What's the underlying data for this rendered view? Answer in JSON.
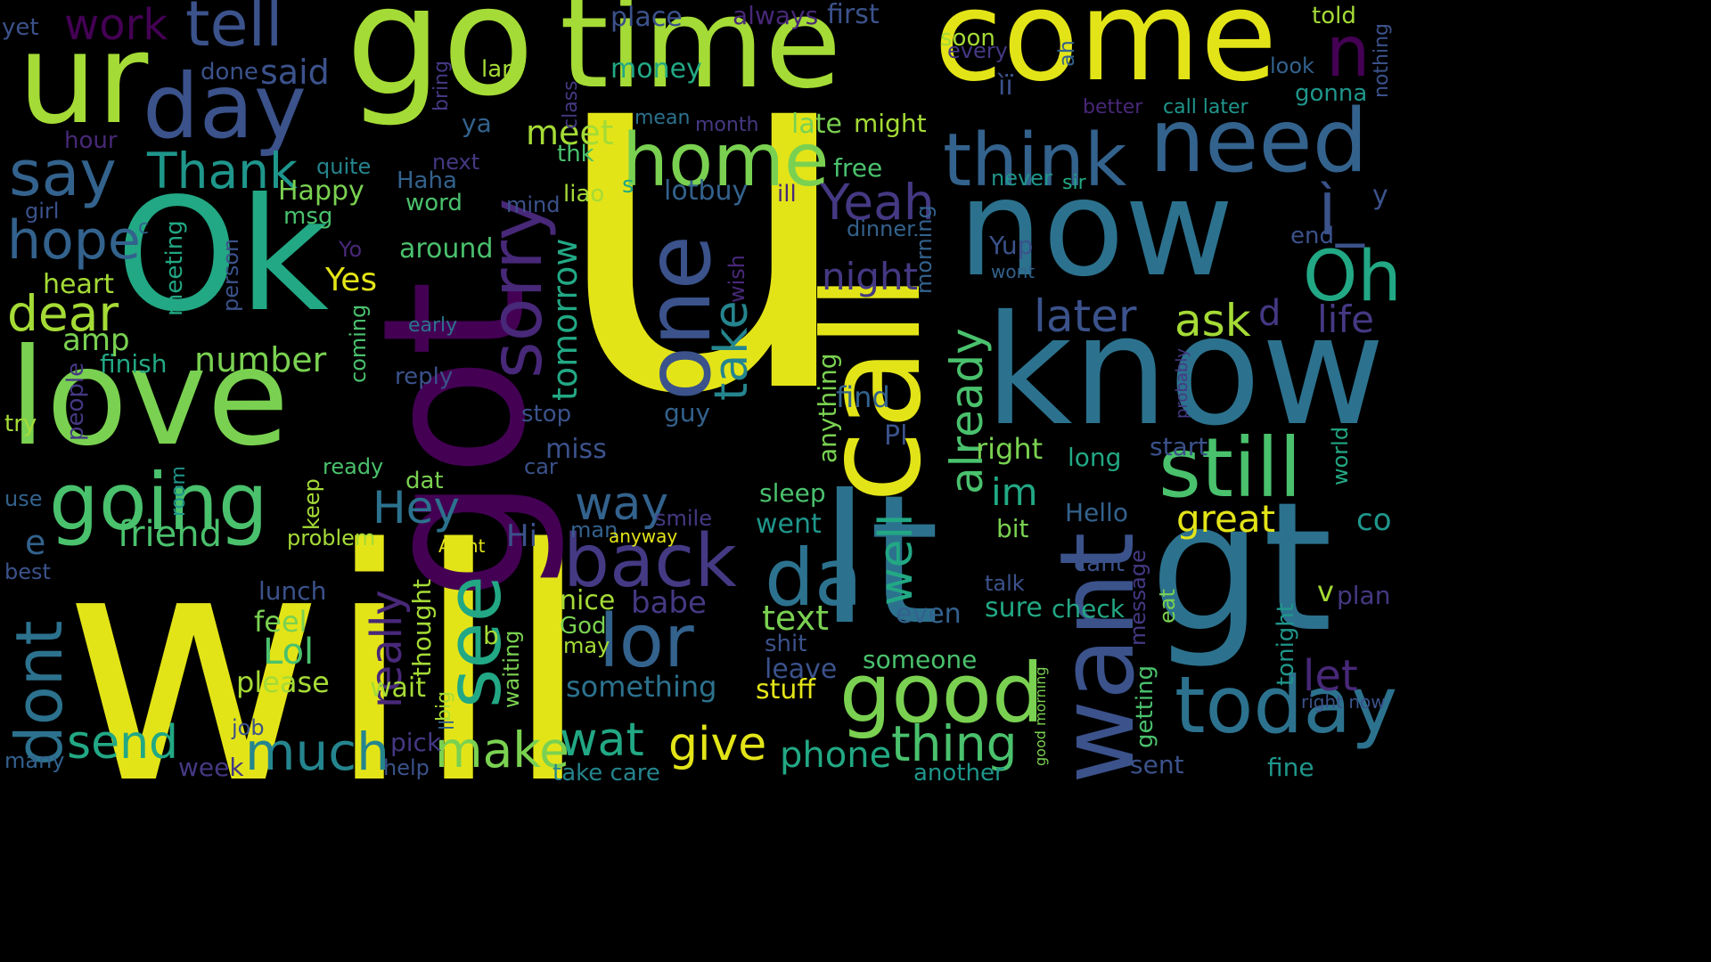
{
  "background": "#000000",
  "palette": {
    "yellow": "#e3e418",
    "yellow_green": "#a5db36",
    "light_green": "#7ad151",
    "green": "#4ac16d",
    "sea_green": "#22a884",
    "teal": "#1f968b",
    "teal_blue": "#25858e",
    "blue": "#2c728e",
    "steel_blue": "#33628d",
    "indigo": "#3b528b",
    "violet": "#443983",
    "deep_violet": "#482878",
    "purple": "#440154"
  },
  "words": [
    {
      "text": "u",
      "color": "yellow"
    },
    {
      "text": "will",
      "color": "yellow"
    },
    {
      "text": "got",
      "color": "purple"
    },
    {
      "text": "go",
      "color": "yellow_green"
    },
    {
      "text": "time",
      "color": "yellow_green"
    },
    {
      "text": "come",
      "color": "yellow"
    },
    {
      "text": "ur",
      "color": "yellow_green"
    },
    {
      "text": "day",
      "color": "indigo"
    },
    {
      "text": "tell",
      "color": "indigo"
    },
    {
      "text": "work",
      "color": "purple"
    },
    {
      "text": "Ok",
      "color": "sea_green"
    },
    {
      "text": "love",
      "color": "light_green"
    },
    {
      "text": "now",
      "color": "blue"
    },
    {
      "text": "know",
      "color": "blue"
    },
    {
      "text": "call",
      "color": "yellow"
    },
    {
      "text": "lt",
      "color": "blue"
    },
    {
      "text": "gt",
      "color": "blue"
    },
    {
      "text": "want",
      "color": "indigo"
    },
    {
      "text": "need",
      "color": "steel_blue"
    },
    {
      "text": "think",
      "color": "steel_blue"
    },
    {
      "text": "one",
      "color": "indigo"
    },
    {
      "text": "sorry",
      "color": "deep_violet"
    },
    {
      "text": "home",
      "color": "light_green"
    },
    {
      "text": "going",
      "color": "green"
    },
    {
      "text": "good",
      "color": "light_green"
    },
    {
      "text": "still",
      "color": "green"
    },
    {
      "text": "today",
      "color": "blue"
    },
    {
      "text": "see",
      "color": "sea_green"
    },
    {
      "text": "back",
      "color": "violet"
    },
    {
      "text": "da",
      "color": "blue"
    },
    {
      "text": "lor",
      "color": "steel_blue"
    },
    {
      "text": "dont",
      "color": "blue"
    },
    {
      "text": "say",
      "color": "steel_blue"
    },
    {
      "text": "Thank",
      "color": "teal"
    },
    {
      "text": "hope",
      "color": "steel_blue"
    },
    {
      "text": "dear",
      "color": "yellow_green"
    },
    {
      "text": "Oh",
      "color": "sea_green"
    },
    {
      "text": "n",
      "color": "purple"
    },
    {
      "text": "Yeah",
      "color": "violet"
    },
    {
      "text": "night",
      "color": "violet"
    },
    {
      "text": "later",
      "color": "indigo"
    },
    {
      "text": "ask",
      "color": "yellow_green"
    },
    {
      "text": "life",
      "color": "violet"
    },
    {
      "text": "take",
      "color": "teal_blue"
    },
    {
      "text": "tomorrow",
      "color": "sea_green"
    },
    {
      "text": "already",
      "color": "green"
    },
    {
      "text": "well",
      "color": "sea_green"
    },
    {
      "text": "im",
      "color": "sea_green"
    },
    {
      "text": "thing",
      "color": "green"
    },
    {
      "text": "much",
      "color": "teal_blue"
    },
    {
      "text": "send",
      "color": "sea_green"
    },
    {
      "text": "make",
      "color": "light_green"
    },
    {
      "text": "wat",
      "color": "sea_green"
    },
    {
      "text": "give",
      "color": "yellow"
    },
    {
      "text": "phone",
      "color": "sea_green"
    },
    {
      "text": "Hey",
      "color": "blue"
    },
    {
      "text": "way",
      "color": "steel_blue"
    },
    {
      "text": "really",
      "color": "deep_violet"
    },
    {
      "text": "great",
      "color": "yellow"
    },
    {
      "text": "meet",
      "color": "yellow_green"
    },
    {
      "text": "friend",
      "color": "green"
    },
    {
      "text": "number",
      "color": "light_green"
    },
    {
      "text": "Yes",
      "color": "yellow"
    },
    {
      "text": "amp",
      "color": "light_green"
    },
    {
      "text": "finish",
      "color": "sea_green"
    },
    {
      "text": "heart",
      "color": "yellow_green"
    },
    {
      "text": "around",
      "color": "green"
    },
    {
      "text": "Happy",
      "color": "light_green"
    },
    {
      "text": "msg",
      "color": "green"
    },
    {
      "text": "said",
      "color": "indigo"
    },
    {
      "text": "done",
      "color": "indigo"
    },
    {
      "text": "money",
      "color": "sea_green"
    },
    {
      "text": "place",
      "color": "indigo"
    },
    {
      "text": "always",
      "color": "deep_violet"
    },
    {
      "text": "first",
      "color": "indigo"
    },
    {
      "text": "soon",
      "color": "yellow_green"
    },
    {
      "text": "every",
      "color": "violet"
    },
    {
      "text": "ah",
      "color": "steel_blue"
    },
    {
      "text": "told",
      "color": "yellow_green"
    },
    {
      "text": "nothing",
      "color": "indigo"
    },
    {
      "text": "look",
      "color": "steel_blue"
    },
    {
      "text": "gonna",
      "color": "teal"
    },
    {
      "text": "better",
      "color": "deep_violet"
    },
    {
      "text": "call later",
      "color": "teal"
    },
    {
      "text": "late",
      "color": "light_green"
    },
    {
      "text": "might",
      "color": "yellow_green"
    },
    {
      "text": "mean",
      "color": "blue"
    },
    {
      "text": "month",
      "color": "violet"
    },
    {
      "text": "ìï",
      "color": "indigo"
    },
    {
      "text": "free",
      "color": "green"
    },
    {
      "text": "never",
      "color": "teal"
    },
    {
      "text": "sir",
      "color": "sea_green"
    },
    {
      "text": "lotbuy",
      "color": "steel_blue"
    },
    {
      "text": "ill",
      "color": "deep_violet"
    },
    {
      "text": "s",
      "color": "sea_green"
    },
    {
      "text": "liao",
      "color": "yellow_green"
    },
    {
      "text": "thk",
      "color": "green"
    },
    {
      "text": "word",
      "color": "green"
    },
    {
      "text": "mind",
      "color": "indigo"
    },
    {
      "text": "Haha",
      "color": "steel_blue"
    },
    {
      "text": "quite",
      "color": "teal_blue"
    },
    {
      "text": "next",
      "color": "violet"
    },
    {
      "text": "ya",
      "color": "steel_blue"
    },
    {
      "text": "lar",
      "color": "yellow_green"
    },
    {
      "text": "class",
      "color": "violet"
    },
    {
      "text": "bring",
      "color": "violet"
    },
    {
      "text": "hour",
      "color": "deep_violet"
    },
    {
      "text": "yet",
      "color": "indigo"
    },
    {
      "text": "c",
      "color": "steel_blue"
    },
    {
      "text": "girl",
      "color": "indigo"
    },
    {
      "text": "meeting",
      "color": "sea_green"
    },
    {
      "text": "person",
      "color": "indigo"
    },
    {
      "text": "Yo",
      "color": "deep_violet"
    },
    {
      "text": "coming",
      "color": "green"
    },
    {
      "text": "early",
      "color": "blue"
    },
    {
      "text": "reply",
      "color": "indigo"
    },
    {
      "text": "people",
      "color": "violet"
    },
    {
      "text": "try",
      "color": "yellow_green"
    },
    {
      "text": "stop",
      "color": "indigo"
    },
    {
      "text": "guy",
      "color": "steel_blue"
    },
    {
      "text": "miss",
      "color": "indigo"
    },
    {
      "text": "car",
      "color": "indigo"
    },
    {
      "text": "ready",
      "color": "green"
    },
    {
      "text": "room",
      "color": "teal"
    },
    {
      "text": "keep",
      "color": "yellow_green"
    },
    {
      "text": "dat",
      "color": "light_green"
    },
    {
      "text": "problem",
      "color": "yellow_green"
    },
    {
      "text": "Hi",
      "color": "indigo"
    },
    {
      "text": "Aight",
      "color": "yellow"
    },
    {
      "text": "smile",
      "color": "violet"
    },
    {
      "text": "man",
      "color": "steel_blue"
    },
    {
      "text": "anyway",
      "color": "yellow"
    },
    {
      "text": "use",
      "color": "steel_blue"
    },
    {
      "text": "best",
      "color": "indigo"
    },
    {
      "text": "e",
      "color": "steel_blue"
    },
    {
      "text": "lunch",
      "color": "indigo"
    },
    {
      "text": "feel",
      "color": "light_green"
    },
    {
      "text": "Lol",
      "color": "green"
    },
    {
      "text": "please",
      "color": "yellow_green"
    },
    {
      "text": "wait",
      "color": "yellow_green"
    },
    {
      "text": "thought",
      "color": "yellow_green"
    },
    {
      "text": "b",
      "color": "yellow_green"
    },
    {
      "text": "waiting",
      "color": "light_green"
    },
    {
      "text": "big",
      "color": "yellow_green"
    },
    {
      "text": "ll",
      "color": "steel_blue"
    },
    {
      "text": "nice",
      "color": "yellow_green"
    },
    {
      "text": "God",
      "color": "light_green"
    },
    {
      "text": "may",
      "color": "yellow_green"
    },
    {
      "text": "babe",
      "color": "violet"
    },
    {
      "text": "something",
      "color": "blue"
    },
    {
      "text": "stuff",
      "color": "yellow"
    },
    {
      "text": "leave",
      "color": "indigo"
    },
    {
      "text": "shit",
      "color": "indigo"
    },
    {
      "text": "text",
      "color": "light_green"
    },
    {
      "text": "sleep",
      "color": "green"
    },
    {
      "text": "went",
      "color": "teal"
    },
    {
      "text": "wish",
      "color": "deep_violet"
    },
    {
      "text": "anything",
      "color": "light_green"
    },
    {
      "text": "find",
      "color": "steel_blue"
    },
    {
      "text": "Pl",
      "color": "indigo"
    },
    {
      "text": "dinner",
      "color": "steel_blue"
    },
    {
      "text": "morning",
      "color": "steel_blue"
    },
    {
      "text": "right",
      "color": "light_green"
    },
    {
      "text": "long",
      "color": "sea_green"
    },
    {
      "text": "start",
      "color": "indigo"
    },
    {
      "text": "probably",
      "color": "violet"
    },
    {
      "text": "world",
      "color": "sea_green"
    },
    {
      "text": "co",
      "color": "teal"
    },
    {
      "text": "Yup",
      "color": "indigo"
    },
    {
      "text": "wont",
      "color": "steel_blue"
    },
    {
      "text": "Ì_",
      "color": "indigo"
    },
    {
      "text": "y",
      "color": "indigo"
    },
    {
      "text": "end",
      "color": "indigo"
    },
    {
      "text": "d",
      "color": "violet"
    },
    {
      "text": "Hello",
      "color": "steel_blue"
    },
    {
      "text": "bit",
      "color": "light_green"
    },
    {
      "text": "cant",
      "color": "indigo"
    },
    {
      "text": "talk",
      "color": "indigo"
    },
    {
      "text": "sure",
      "color": "sea_green"
    },
    {
      "text": "check",
      "color": "sea_green"
    },
    {
      "text": "even",
      "color": "steel_blue"
    },
    {
      "text": "someone",
      "color": "green"
    },
    {
      "text": "message",
      "color": "violet"
    },
    {
      "text": "getting",
      "color": "green"
    },
    {
      "text": "eat",
      "color": "light_green"
    },
    {
      "text": "tonight",
      "color": "teal"
    },
    {
      "text": "v",
      "color": "yellow_green"
    },
    {
      "text": "plan",
      "color": "violet"
    },
    {
      "text": "let",
      "color": "deep_violet"
    },
    {
      "text": "right now",
      "color": "indigo"
    },
    {
      "text": "good morning",
      "color": "light_green"
    },
    {
      "text": "sent",
      "color": "indigo"
    },
    {
      "text": "fine",
      "color": "teal"
    },
    {
      "text": "another",
      "color": "teal"
    },
    {
      "text": "job",
      "color": "indigo"
    },
    {
      "text": "pick",
      "color": "violet"
    },
    {
      "text": "help",
      "color": "indigo"
    },
    {
      "text": "week",
      "color": "violet"
    },
    {
      "text": "take care",
      "color": "teal_blue"
    },
    {
      "text": "many",
      "color": "steel_blue"
    }
  ]
}
